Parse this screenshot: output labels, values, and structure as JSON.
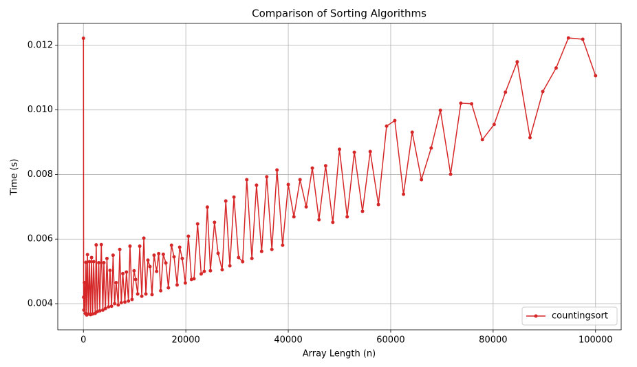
{
  "chart_data": {
    "type": "line",
    "title": "Comparison of Sorting Algorithms",
    "xlabel": "Array Length (n)",
    "ylabel": "Time (s)",
    "x": [
      10,
      50,
      100,
      200,
      350,
      500,
      650,
      800,
      1000,
      1200,
      1400,
      1600,
      1800,
      2000,
      2300,
      2500,
      2700,
      3000,
      3200,
      3500,
      3800,
      4000,
      4300,
      4600,
      4900,
      5200,
      5500,
      5800,
      6100,
      6400,
      6800,
      7100,
      7400,
      7700,
      8100,
      8400,
      8800,
      9100,
      9500,
      9900,
      10200,
      10600,
      11000,
      11400,
      11800,
      12200,
      12600,
      13000,
      13400,
      13800,
      14300,
      14700,
      15100,
      15600,
      16100,
      16600,
      17200,
      17700,
      18300,
      18800,
      19300,
      19900,
      20500,
      21100,
      21600,
      22300,
      23000,
      23600,
      24200,
      24800,
      25600,
      26300,
      27100,
      27800,
      28600,
      29400,
      30300,
      31100,
      31900,
      32900,
      33800,
      34800,
      35800,
      36800,
      37800,
      38900,
      40000,
      41100,
      42300,
      43500,
      44700,
      46000,
      47300,
      48700,
      50000,
      51500,
      52900,
      54500,
      56000,
      57600,
      59200,
      60800,
      62500,
      64200,
      66000,
      67900,
      69700,
      71700,
      73700,
      75800,
      77900,
      80200,
      82400,
      84700,
      87200,
      89700,
      92300,
      94700,
      97500,
      100000
    ],
    "series": [
      {
        "name": "countingsort",
        "color": "#d62728",
        "values": [
          0.01222,
          0.0042,
          0.0038,
          0.00465,
          0.0037,
          0.00528,
          0.00365,
          0.00552,
          0.00368,
          0.0053,
          0.00366,
          0.00543,
          0.00368,
          0.0053,
          0.0037,
          0.00582,
          0.00375,
          0.00527,
          0.00378,
          0.00583,
          0.0038,
          0.00527,
          0.00385,
          0.0054,
          0.0039,
          0.00503,
          0.00392,
          0.0055,
          0.004,
          0.00465,
          0.00396,
          0.00568,
          0.00403,
          0.00493,
          0.00405,
          0.00498,
          0.00408,
          0.00578,
          0.00413,
          0.00502,
          0.00475,
          0.0043,
          0.00578,
          0.00423,
          0.00603,
          0.0043,
          0.00535,
          0.00515,
          0.00428,
          0.0055,
          0.005,
          0.00555,
          0.0044,
          0.00553,
          0.00526,
          0.00449,
          0.00581,
          0.00545,
          0.00458,
          0.00575,
          0.0054,
          0.00464,
          0.00609,
          0.00475,
          0.00477,
          0.00647,
          0.00492,
          0.005,
          0.00699,
          0.00502,
          0.00652,
          0.00556,
          0.00505,
          0.00718,
          0.00517,
          0.0073,
          0.00543,
          0.0053,
          0.00784,
          0.0054,
          0.00767,
          0.00562,
          0.00793,
          0.00568,
          0.00814,
          0.00581,
          0.00769,
          0.00669,
          0.00784,
          0.007,
          0.0082,
          0.0066,
          0.00827,
          0.00652,
          0.00878,
          0.00669,
          0.00869,
          0.00686,
          0.00871,
          0.00707,
          0.0095,
          0.00967,
          0.00739,
          0.00931,
          0.00784,
          0.00882,
          0.00999,
          0.00801,
          0.01021,
          0.01019,
          0.00908,
          0.00955,
          0.01055,
          0.01149,
          0.00914,
          0.01057,
          0.0113,
          0.01223,
          0.01219,
          0.01106
        ]
      }
    ],
    "xlim": [
      -5000,
      105000
    ],
    "xticks": [
      0,
      20000,
      40000,
      60000,
      80000,
      100000
    ],
    "ylim": [
      0.00319,
      0.01268
    ],
    "yticks": [
      0.004,
      0.006,
      0.008,
      {
        "value": 0.01,
        "label": "0.010"
      },
      0.012
    ],
    "grid": true,
    "legend": "lower right"
  }
}
